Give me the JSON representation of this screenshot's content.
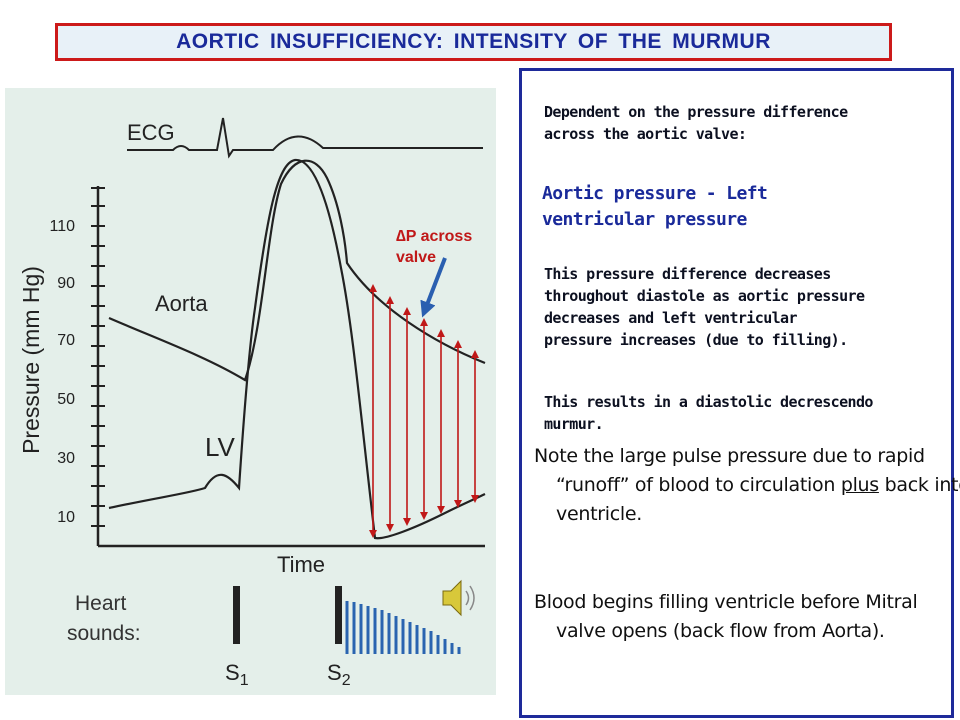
{
  "title": "AORTIC INSUFFICIENCY: INTENSITY OF THE MURMUR",
  "figure": {
    "ecg_label": "ECG",
    "y_axis_label": "Pressure (mm Hg)",
    "y_ticks": [
      "110",
      "90",
      "70",
      "50",
      "30",
      "10"
    ],
    "aorta_label": "Aorta",
    "lv_label": "LV",
    "x_axis_label": "Time",
    "heart_sounds_label_1": "Heart",
    "heart_sounds_label_2": "sounds:",
    "s1_label": "S",
    "s1_sub": "1",
    "s2_label": "S",
    "s2_sub": "2",
    "delta_label_1": "∆P across",
    "delta_label_2": "valve",
    "colors": {
      "arrows": "#c01818",
      "pointer": "#2a5fb0",
      "murmur": "#2a64b0"
    }
  },
  "text": {
    "p1_line1": "Dependent on the pressure difference",
    "p1_line2": "across the aortic valve:",
    "p2_line1": "Aortic pressure  -  Left",
    "p2_line2": "ventricular pressure",
    "p3_line1": "This pressure difference decreases",
    "p3_line2": "throughout diastole as aortic pressure",
    "p3_line3": "decreases and left ventricular",
    "p3_line4": "pressure increases (due to filling).",
    "p4_line1": "This results in a diastolic decrescendo",
    "p4_line2": "murmur.",
    "note1_a": "Note the large pulse pressure due to rapid “runoff” of blood to circulation ",
    "note1_u": "plus",
    "note1_b": " back into ventricle.",
    "note2": "Blood begins filling ventricle before Mitral valve opens (back flow from Aorta)."
  }
}
